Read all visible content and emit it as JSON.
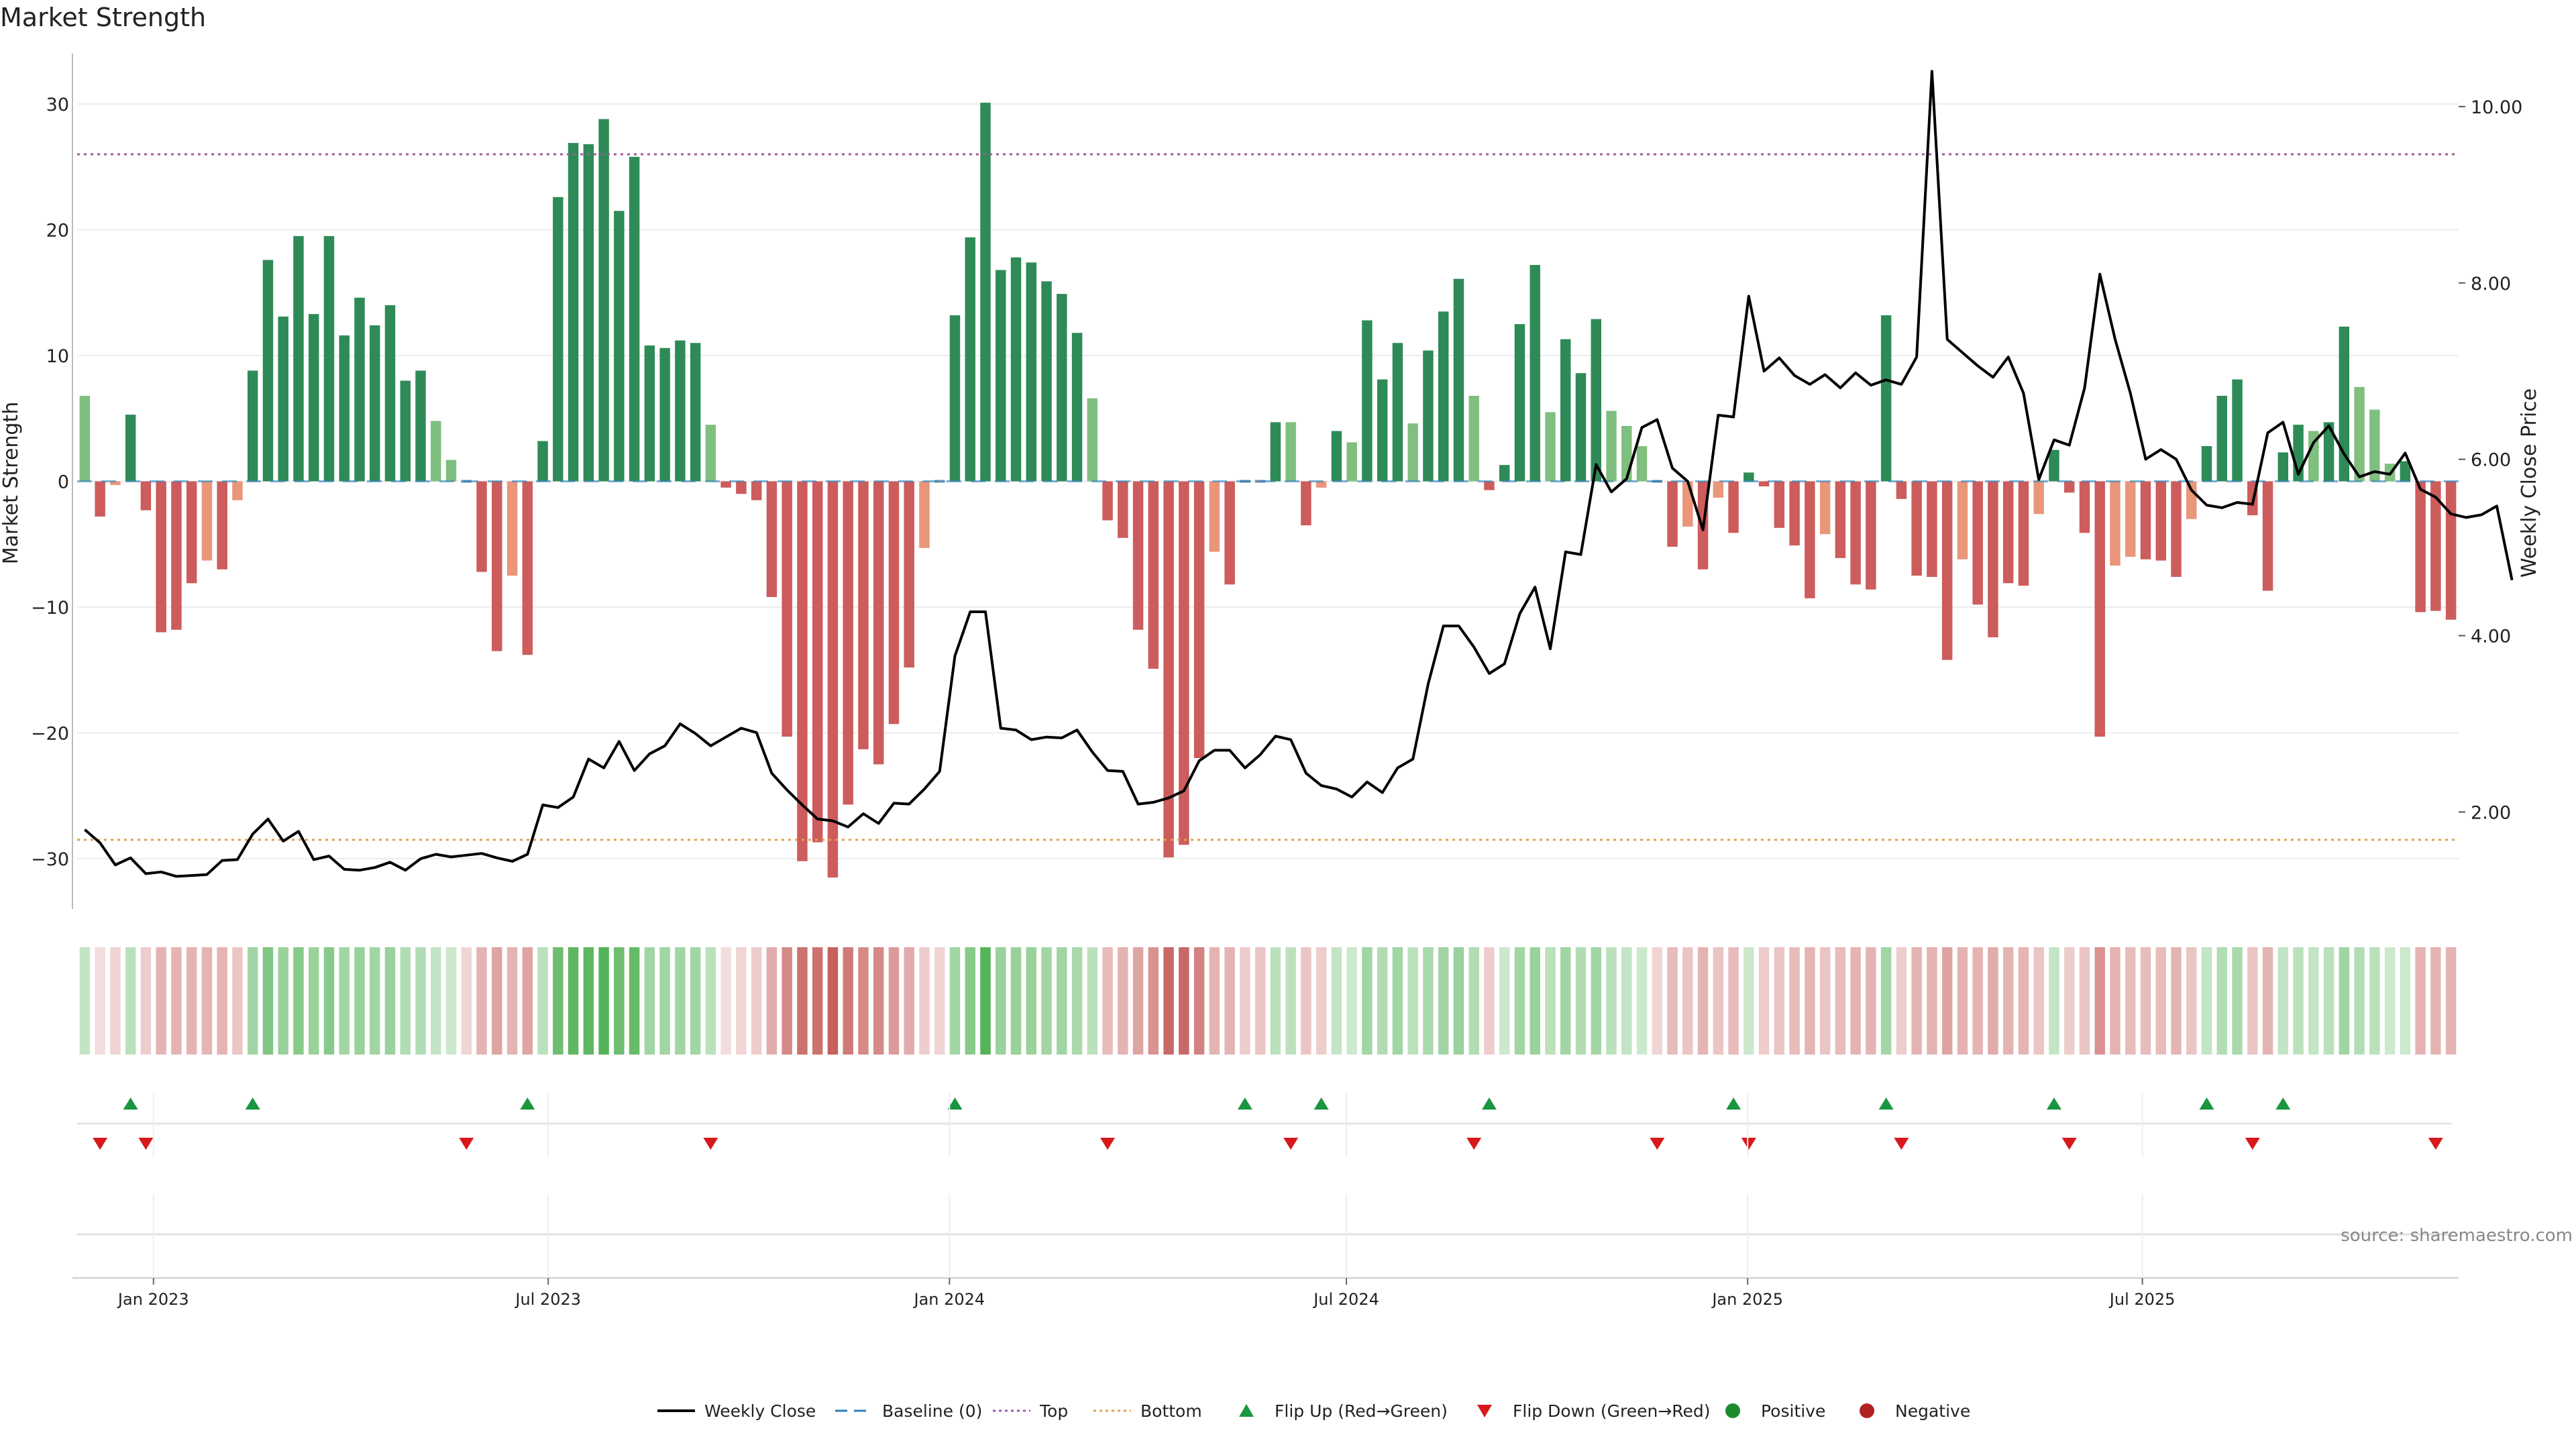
{
  "chart_data": {
    "type": "bar",
    "title": "Market Strength",
    "ylabel": "Market Strength",
    "y2label": "Weekly Close Price",
    "ylim": [
      -34,
      34
    ],
    "y2lim": [
      0.9,
      10.6
    ],
    "yticks": [
      30,
      20,
      10,
      0,
      -10,
      -20,
      -30
    ],
    "ytick_labels": [
      "30",
      "20",
      "10",
      "0",
      "−10",
      "−20",
      "−30"
    ],
    "y2ticks": [
      10.0,
      8.0,
      6.0,
      4.0,
      2.0
    ],
    "y2tick_labels": [
      "10.00",
      "8.00",
      "6.00",
      "4.00",
      "2.00"
    ],
    "top_threshold": 26,
    "bottom_threshold": -28.5,
    "baseline": 0,
    "x_start": "2022-11-27",
    "x_end": "2025-11-23",
    "xticks": [
      {
        "date": "2023-01-01",
        "label": "Jan 2023"
      },
      {
        "date": "2023-07-01",
        "label": "Jul 2023"
      },
      {
        "date": "2024-01-01",
        "label": "Jan 2024"
      },
      {
        "date": "2024-07-01",
        "label": "Jul 2024"
      },
      {
        "date": "2025-01-01",
        "label": "Jan 2025"
      },
      {
        "date": "2025-07-01",
        "label": "Jul 2025"
      }
    ],
    "series": [
      {
        "name": "Market Strength",
        "values": [
          6.8,
          -2.8,
          -0.3,
          5.3,
          -2.3,
          -12.0,
          -11.8,
          -8.1,
          -6.3,
          -7.0,
          -1.5,
          8.8,
          17.6,
          13.1,
          19.5,
          13.3,
          19.5,
          11.6,
          14.6,
          12.4,
          14.0,
          8.0,
          8.8,
          4.8,
          1.7,
          0,
          -7.2,
          -13.5,
          -7.5,
          -13.8,
          3.2,
          22.6,
          26.9,
          26.8,
          28.8,
          21.5,
          25.8,
          10.8,
          10.6,
          11.2,
          11.0,
          4.5,
          -0.5,
          -1.0,
          -1.5,
          -9.2,
          -20.3,
          -30.2,
          -28.7,
          -31.5,
          -25.7,
          -21.3,
          -22.5,
          -19.3,
          -14.8,
          -5.3,
          0,
          13.2,
          19.4,
          30.1,
          16.8,
          17.8,
          17.4,
          15.9,
          14.9,
          11.8,
          6.6,
          -3.1,
          -4.5,
          -11.8,
          -14.9,
          -29.9,
          -28.9,
          -22.0,
          -5.6,
          -8.2,
          0,
          0,
          4.7,
          4.7,
          -3.5,
          -0.5,
          4.0,
          3.1,
          12.8,
          8.1,
          11.0,
          4.6,
          10.4,
          13.5,
          16.1,
          6.8,
          -0.7,
          1.3,
          12.5,
          17.2,
          5.5,
          11.3,
          8.6,
          12.9,
          5.6,
          4.4,
          2.8,
          0,
          -5.2,
          -3.6,
          -7.0,
          -1.3,
          -4.1,
          0.7,
          -0.4,
          -3.7,
          -5.1,
          -9.3,
          -4.2,
          -6.1,
          -8.2,
          -8.6,
          13.2,
          -1.4,
          -7.5,
          -7.6,
          -14.2,
          -6.2,
          -9.8,
          -12.4,
          -8.1,
          -8.3,
          -2.6,
          2.5,
          -0.9,
          -4.1,
          -20.3,
          -6.7,
          -6.0,
          -6.2,
          -6.3,
          -7.6,
          -3.0,
          2.8,
          6.8,
          8.1,
          -2.7,
          -8.7,
          2.3,
          4.5,
          4.0,
          4.7,
          12.3,
          7.5,
          5.7,
          1.4,
          1.6,
          -10.4,
          -10.3,
          -11.0
        ]
      },
      {
        "name": "Weekly Close",
        "axis": "right",
        "values": [
          1.8,
          1.65,
          1.4,
          1.48,
          1.3,
          1.32,
          1.27,
          1.28,
          1.29,
          1.45,
          1.46,
          1.75,
          1.92,
          1.67,
          1.78,
          1.46,
          1.5,
          1.35,
          1.34,
          1.37,
          1.43,
          1.34,
          1.47,
          1.52,
          1.49,
          1.51,
          1.53,
          1.48,
          1.44,
          1.52,
          2.08,
          2.05,
          2.17,
          2.6,
          2.5,
          2.8,
          2.47,
          2.66,
          2.75,
          3.0,
          2.89,
          2.75,
          2.85,
          2.95,
          2.9,
          2.44,
          2.25,
          2.08,
          1.92,
          1.9,
          1.83,
          1.98,
          1.87,
          2.1,
          2.09,
          2.26,
          2.46,
          3.77,
          4.27,
          4.27,
          2.95,
          2.93,
          2.82,
          2.85,
          2.84,
          2.93,
          2.68,
          2.47,
          2.46,
          2.09,
          2.11,
          2.16,
          2.24,
          2.58,
          2.7,
          2.7,
          2.5,
          2.65,
          2.86,
          2.82,
          2.44,
          2.3,
          2.26,
          2.17,
          2.34,
          2.22,
          2.5,
          2.6,
          3.45,
          4.11,
          4.11,
          3.87,
          3.57,
          3.68,
          4.25,
          4.55,
          3.85,
          4.95,
          4.92,
          5.94,
          5.63,
          5.78,
          6.36,
          6.45,
          5.9,
          5.75,
          5.2,
          6.5,
          6.48,
          7.85,
          7.0,
          7.15,
          6.95,
          6.85,
          6.96,
          6.81,
          6.98,
          6.84,
          6.9,
          6.85,
          7.16,
          10.4,
          7.36,
          7.21,
          7.06,
          6.93,
          7.16,
          6.75,
          5.77,
          6.22,
          6.16,
          6.81,
          8.1,
          7.36,
          6.75,
          6.0,
          6.11,
          6.0,
          5.65,
          5.48,
          5.45,
          5.51,
          5.49,
          6.3,
          6.42,
          5.83,
          6.19,
          6.38,
          6.06,
          5.8,
          5.86,
          5.83,
          6.07,
          5.66,
          5.57,
          5.38,
          5.34,
          5.37,
          5.47,
          4.63
        ]
      }
    ],
    "strip_levels": [
      0.35,
      0.2,
      0.25,
      0.4,
      0.3,
      0.45,
      0.45,
      0.45,
      0.45,
      0.45,
      0.35,
      0.55,
      0.75,
      0.6,
      0.7,
      0.6,
      0.7,
      0.55,
      0.6,
      0.55,
      0.6,
      0.45,
      0.45,
      0.35,
      0.3,
      0.25,
      0.45,
      0.55,
      0.45,
      0.55,
      0.4,
      0.85,
      0.95,
      0.95,
      1.0,
      0.85,
      0.9,
      0.55,
      0.55,
      0.55,
      0.55,
      0.4,
      0.2,
      0.25,
      0.3,
      0.5,
      0.7,
      0.85,
      0.85,
      0.95,
      0.8,
      0.7,
      0.7,
      0.6,
      0.5,
      0.3,
      0.25,
      0.55,
      0.7,
      1.0,
      0.6,
      0.6,
      0.6,
      0.55,
      0.55,
      0.5,
      0.4,
      0.4,
      0.45,
      0.55,
      0.65,
      0.9,
      0.9,
      0.75,
      0.45,
      0.45,
      0.3,
      0.35,
      0.4,
      0.4,
      0.35,
      0.3,
      0.35,
      0.3,
      0.55,
      0.45,
      0.55,
      0.4,
      0.5,
      0.55,
      0.6,
      0.45,
      0.3,
      0.3,
      0.55,
      0.6,
      0.4,
      0.55,
      0.45,
      0.55,
      0.4,
      0.35,
      0.3,
      0.25,
      0.4,
      0.35,
      0.45,
      0.35,
      0.4,
      0.3,
      0.3,
      0.35,
      0.4,
      0.45,
      0.35,
      0.4,
      0.45,
      0.45,
      0.55,
      0.3,
      0.45,
      0.45,
      0.55,
      0.45,
      0.45,
      0.5,
      0.45,
      0.45,
      0.35,
      0.35,
      0.3,
      0.35,
      0.65,
      0.45,
      0.4,
      0.4,
      0.4,
      0.45,
      0.35,
      0.35,
      0.45,
      0.5,
      0.35,
      0.45,
      0.35,
      0.4,
      0.35,
      0.4,
      0.55,
      0.45,
      0.4,
      0.3,
      0.3,
      0.45,
      0.45,
      0.45
    ],
    "flip_up_weeks": [
      3,
      11,
      29,
      57,
      76,
      81,
      92,
      108,
      118,
      129,
      139,
      144
    ],
    "flip_down_weeks": [
      1,
      4,
      25,
      41,
      67,
      79,
      91,
      103,
      109,
      119,
      130,
      142,
      154
    ],
    "legend_position": "bottom",
    "legend": [
      {
        "label": "Weekly Close",
        "kind": "line",
        "color": "#000000"
      },
      {
        "label": "Baseline (0)",
        "kind": "dash",
        "color": "#2c7fb8"
      },
      {
        "label": "Top",
        "kind": "dot",
        "color": "#9b59b6"
      },
      {
        "label": "Bottom",
        "kind": "dot",
        "color": "#e0a050"
      },
      {
        "label": "Flip Up (Red→Green)",
        "kind": "tri-up",
        "color": "#1a9641"
      },
      {
        "label": "Flip Down (Green→Red)",
        "kind": "tri-down",
        "color": "#d7191c"
      },
      {
        "label": "Positive",
        "kind": "dot-marker",
        "color": "#1e8a2e"
      },
      {
        "label": "Negative",
        "kind": "dot-marker",
        "color": "#b22222"
      }
    ],
    "source": "source: sharemaestro.com",
    "colors": {
      "strong_green": "#2e8b57",
      "light_green": "#7fbf7f",
      "strong_red": "#cd5c5c",
      "light_red": "#e9967a",
      "strip_green": "#4caf50",
      "strip_red": "#c0504d",
      "price_line": "#000000",
      "top_line": "#a05a9a",
      "bottom_line": "#e0a050",
      "baseline": "#2c7fb8",
      "flip_up": "#1a9641",
      "flip_down": "#d7191c"
    }
  }
}
